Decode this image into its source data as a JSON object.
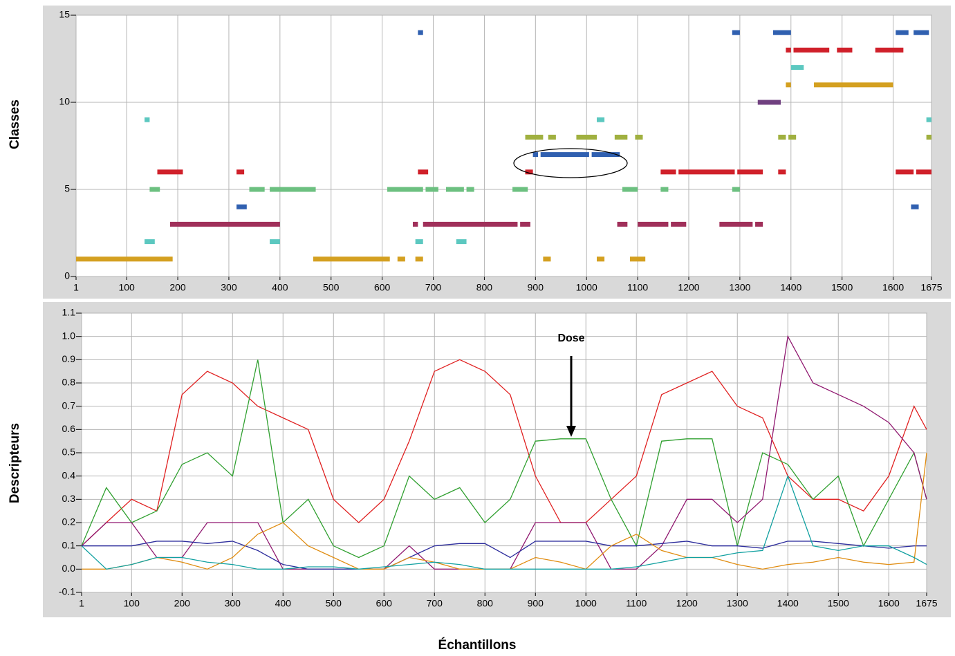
{
  "chart_data": [
    {
      "type": "segments",
      "ylabel": "Classes",
      "xlim": [
        1,
        1675
      ],
      "ylim": [
        0,
        15
      ],
      "xticks": [
        1,
        100,
        200,
        300,
        400,
        500,
        600,
        700,
        800,
        900,
        1000,
        1100,
        1200,
        1300,
        1400,
        1500,
        1600,
        1675
      ],
      "yticks": [
        0,
        5,
        10,
        15
      ],
      "grid": true,
      "series": [
        {
          "class": 1,
          "color": "#d4a020",
          "segments": [
            [
              1,
              190
            ],
            [
              465,
              615
            ],
            [
              630,
              645
            ],
            [
              665,
              680
            ],
            [
              915,
              930
            ],
            [
              1020,
              1035
            ],
            [
              1085,
              1115
            ]
          ]
        },
        {
          "class": 2,
          "color": "#5cc8c0",
          "segments": [
            [
              135,
              155
            ],
            [
              380,
              400
            ],
            [
              665,
              680
            ],
            [
              745,
              765
            ]
          ]
        },
        {
          "class": 3,
          "color": "#a0305a",
          "segments": [
            [
              185,
              400
            ],
            [
              660,
              670
            ],
            [
              680,
              865
            ],
            [
              870,
              890
            ],
            [
              1060,
              1080
            ],
            [
              1100,
              1160
            ],
            [
              1165,
              1195
            ],
            [
              1260,
              1325
            ],
            [
              1330,
              1345
            ]
          ]
        },
        {
          "class": 4,
          "color": "#3060b0",
          "segments": [
            [
              315,
              335
            ],
            [
              1635,
              1650
            ]
          ]
        },
        {
          "class": 5,
          "color": "#6cc080",
          "segments": [
            [
              145,
              165
            ],
            [
              340,
              370
            ],
            [
              380,
              470
            ],
            [
              610,
              680
            ],
            [
              685,
              710
            ],
            [
              725,
              760
            ],
            [
              765,
              780
            ],
            [
              855,
              885
            ],
            [
              1070,
              1100
            ],
            [
              1145,
              1160
            ],
            [
              1285,
              1300
            ]
          ]
        },
        {
          "class": 6,
          "color": "#d0202a",
          "segments": [
            [
              160,
              210
            ],
            [
              315,
              330
            ],
            [
              670,
              690
            ],
            [
              880,
              895
            ],
            [
              1145,
              1175
            ],
            [
              1180,
              1290
            ],
            [
              1295,
              1345
            ],
            [
              1375,
              1390
            ],
            [
              1605,
              1640
            ],
            [
              1645,
              1675
            ]
          ]
        },
        {
          "class": 7,
          "color": "#3060b0",
          "segments": [
            [
              895,
              905
            ],
            [
              910,
              1005
            ],
            [
              1010,
              1065
            ]
          ]
        },
        {
          "class": 8,
          "color": "#a0b040",
          "segments": [
            [
              880,
              915
            ],
            [
              925,
              940
            ],
            [
              980,
              1020
            ],
            [
              1055,
              1080
            ],
            [
              1095,
              1110
            ],
            [
              1375,
              1390
            ],
            [
              1395,
              1410
            ],
            [
              1665,
              1675
            ]
          ]
        },
        {
          "class": 9,
          "color": "#5cc8c0",
          "segments": [
            [
              135,
              145
            ],
            [
              1020,
              1035
            ],
            [
              1665,
              1675
            ]
          ]
        },
        {
          "class": 10,
          "color": "#704080",
          "segments": [
            [
              1335,
              1380
            ]
          ]
        },
        {
          "class": 11,
          "color": "#d4a020",
          "segments": [
            [
              1390,
              1400
            ],
            [
              1445,
              1600
            ]
          ]
        },
        {
          "class": 12,
          "color": "#5cc8c0",
          "segments": [
            [
              1400,
              1425
            ]
          ]
        },
        {
          "class": 13,
          "color": "#d0202a",
          "segments": [
            [
              1390,
              1400
            ],
            [
              1405,
              1475
            ],
            [
              1490,
              1520
            ],
            [
              1565,
              1620
            ]
          ]
        },
        {
          "class": 14,
          "color": "#3060b0",
          "segments": [
            [
              670,
              680
            ],
            [
              1285,
              1300
            ],
            [
              1365,
              1400
            ],
            [
              1605,
              1630
            ],
            [
              1640,
              1670
            ]
          ]
        }
      ]
    },
    {
      "type": "line",
      "ylabel": "Descripteurs",
      "xlabel": "Échantillons",
      "annotation": "Dose",
      "xlim": [
        1,
        1675
      ],
      "ylim": [
        -0.1,
        1.1
      ],
      "xticks": [
        1,
        100,
        200,
        300,
        400,
        500,
        600,
        700,
        800,
        900,
        1000,
        1100,
        1200,
        1300,
        1400,
        1500,
        1600,
        1675
      ],
      "yticks": [
        -0.1,
        {
          "value": 0,
          "label": "0.0"
        },
        0.1,
        0.2,
        0.3,
        0.4,
        0.5,
        0.6,
        0.7,
        0.8,
        0.9,
        {
          "value": 1,
          "label": "1.0"
        },
        1.1
      ],
      "grid": true,
      "x": [
        1,
        50,
        100,
        150,
        200,
        250,
        300,
        350,
        400,
        450,
        500,
        550,
        600,
        650,
        700,
        750,
        800,
        850,
        900,
        950,
        1000,
        1050,
        1100,
        1150,
        1200,
        1250,
        1300,
        1350,
        1400,
        1450,
        1500,
        1550,
        1600,
        1650,
        1675
      ],
      "series": [
        {
          "color": "#e02020",
          "values": [
            0.1,
            0.2,
            0.3,
            0.25,
            0.75,
            0.85,
            0.8,
            0.7,
            0.65,
            0.6,
            0.3,
            0.2,
            0.3,
            0.55,
            0.85,
            0.9,
            0.85,
            0.75,
            0.4,
            0.2,
            0.2,
            0.3,
            0.4,
            0.75,
            0.8,
            0.85,
            0.7,
            0.65,
            0.4,
            0.3,
            0.3,
            0.25,
            0.4,
            0.7,
            0.6
          ]
        },
        {
          "color": "#30a030",
          "values": [
            0.1,
            0.35,
            0.2,
            0.25,
            0.45,
            0.5,
            0.4,
            0.9,
            0.2,
            0.3,
            0.1,
            0.05,
            0.1,
            0.4,
            0.3,
            0.35,
            0.2,
            0.3,
            0.55,
            0.56,
            0.56,
            0.3,
            0.1,
            0.55,
            0.56,
            0.56,
            0.1,
            0.5,
            0.45,
            0.3,
            0.4,
            0.1,
            0.3,
            0.5,
            0.3
          ]
        },
        {
          "color": "#901870",
          "values": [
            0.1,
            0.2,
            0.2,
            0.05,
            0.05,
            0.2,
            0.2,
            0.2,
            0,
            0,
            0,
            0,
            0,
            0.1,
            0,
            0,
            0,
            0,
            0.2,
            0.2,
            0.2,
            0,
            0,
            0.1,
            0.3,
            0.3,
            0.2,
            0.3,
            1.0,
            0.8,
            0.75,
            0.7,
            0.63,
            0.5,
            0.3
          ]
        },
        {
          "color": "#2c2c9c",
          "values": [
            0.1,
            0.1,
            0.1,
            0.12,
            0.12,
            0.11,
            0.12,
            0.08,
            0.02,
            0,
            0,
            0,
            0,
            0.05,
            0.1,
            0.11,
            0.11,
            0.05,
            0.12,
            0.12,
            0.12,
            0.1,
            0.1,
            0.11,
            0.12,
            0.1,
            0.1,
            0.09,
            0.12,
            0.12,
            0.11,
            0.1,
            0.09,
            0.1,
            0.1
          ]
        },
        {
          "color": "#e08c10",
          "values": [
            0,
            0,
            0.02,
            0.05,
            0.03,
            0,
            0.05,
            0.15,
            0.2,
            0.1,
            0.05,
            0,
            0,
            0.05,
            0.03,
            0,
            0,
            0,
            0.05,
            0.03,
            0,
            0.1,
            0.15,
            0.08,
            0.05,
            0.05,
            0.02,
            0,
            0.02,
            0.03,
            0.05,
            0.03,
            0.02,
            0.03,
            0.5
          ]
        },
        {
          "color": "#10a0a0",
          "values": [
            0.1,
            0,
            0.02,
            0.05,
            0.05,
            0.03,
            0.02,
            0,
            0,
            0.01,
            0.01,
            0,
            0.01,
            0.02,
            0.03,
            0.02,
            0,
            0,
            0,
            0,
            0,
            0,
            0.01,
            0.03,
            0.05,
            0.05,
            0.07,
            0.08,
            0.4,
            0.1,
            0.08,
            0.1,
            0.1,
            0.05,
            0.02
          ]
        }
      ]
    }
  ]
}
